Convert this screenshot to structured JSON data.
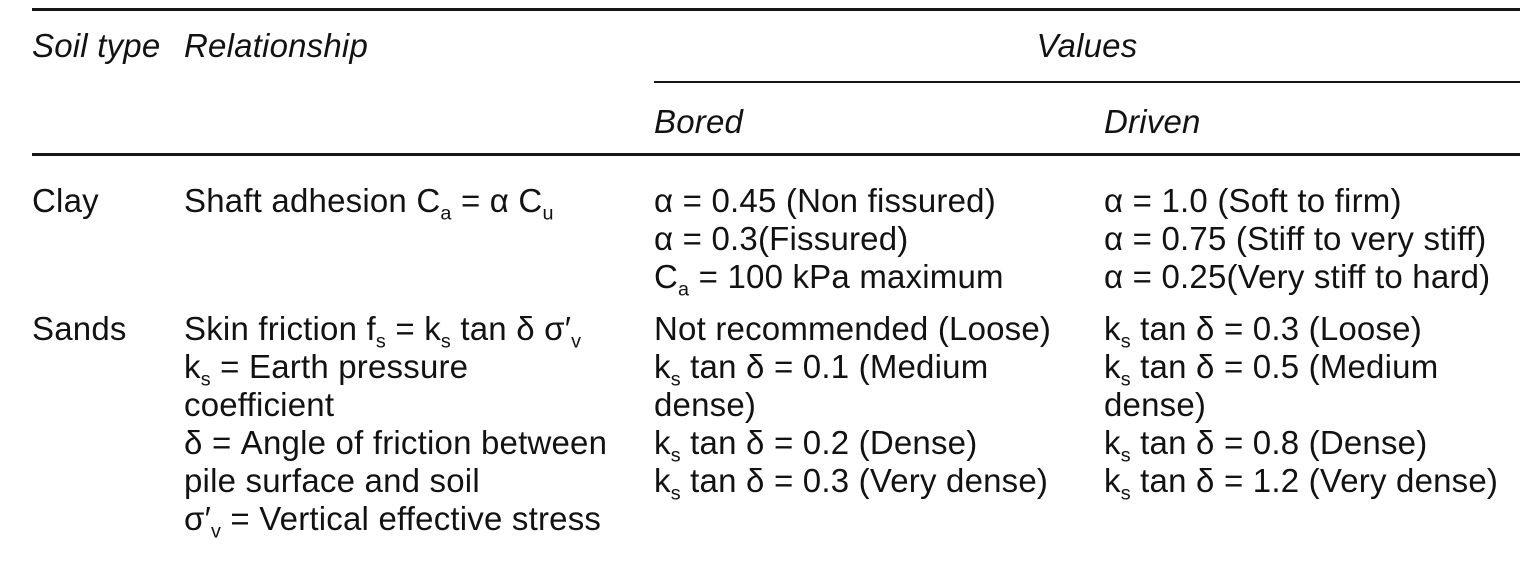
{
  "colors": {
    "background": "#ffffff",
    "text": "#121212",
    "rule": "#161616"
  },
  "table": {
    "headers": {
      "soil_type": "Soil type",
      "relationship": "Relationship",
      "values": "Values",
      "bored": "Bored",
      "driven": "Driven"
    },
    "rows": [
      {
        "soil_type": "Clay",
        "relationship": [
          "Shaft adhesion C_{a} = α C_{u}"
        ],
        "bored": [
          "α = 0.45 (Non fissured)",
          "α = 0.3(Fissured)",
          "C_{a} = 100 kPa maximum"
        ],
        "driven": [
          "α = 1.0 (Soft to firm)",
          "α = 0.75 (Stiff to very stiff)",
          "α = 0.25(Very stiff to hard)"
        ]
      },
      {
        "soil_type": "Sands",
        "relationship": [
          "Skin friction f_{s} = k_{s} tan δ σ′_{v}",
          "k_{s} = Earth pressure coefficient",
          "δ = Angle of friction between pile surface and soil",
          "σ′_{v} = Vertical effective stress"
        ],
        "bored": [
          "Not recommended (Loose)",
          "k_{s} tan δ = 0.1 (Medium dense)",
          "k_{s} tan δ = 0.2 (Dense)",
          "k_{s} tan δ = 0.3 (Very dense)"
        ],
        "driven": [
          "k_{s} tan δ = 0.3 (Loose)",
          "k_{s} tan δ = 0.5 (Medium dense)",
          "k_{s} tan δ = 0.8 (Dense)",
          "k_{s} tan δ = 1.2 (Very dense)"
        ]
      }
    ]
  }
}
